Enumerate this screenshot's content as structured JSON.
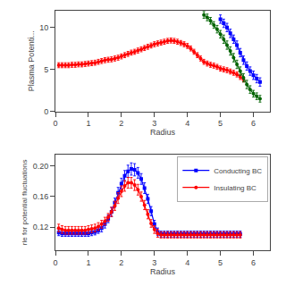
{
  "chart_data": [
    {
      "type": "line",
      "xlabel": "Radius",
      "ylabel": "Plasma Potenti...",
      "xlim": [
        0,
        6.5
      ],
      "ylim": [
        0,
        12
      ],
      "xticks": [
        0,
        1,
        2,
        3,
        4,
        5,
        6
      ],
      "yticks": [
        0,
        5,
        10
      ],
      "grid": false,
      "series": [
        {
          "color": "red",
          "marker": "circle",
          "line_style": "solid",
          "x": [
            0.1,
            0.2,
            0.3,
            0.4,
            0.5,
            0.6,
            0.7,
            0.8,
            0.9,
            1.0,
            1.1,
            1.2,
            1.3,
            1.4,
            1.5,
            1.6,
            1.7,
            1.8,
            1.9,
            2.0,
            2.1,
            2.2,
            2.3,
            2.4,
            2.5,
            2.6,
            2.7,
            2.8,
            2.9,
            3.0,
            3.1,
            3.2,
            3.3,
            3.4,
            3.5,
            3.6,
            3.7,
            3.8,
            3.9,
            4.0,
            4.1,
            4.2,
            4.3,
            4.4,
            4.5,
            4.6,
            4.7,
            4.8,
            4.9,
            5.0,
            5.1,
            5.2,
            5.3,
            5.4,
            5.5,
            5.6,
            5.7
          ],
          "values": [
            5.5,
            5.5,
            5.5,
            5.5,
            5.55,
            5.55,
            5.6,
            5.6,
            5.65,
            5.7,
            5.75,
            5.8,
            5.9,
            6.0,
            6.1,
            6.15,
            6.2,
            6.3,
            6.4,
            6.55,
            6.7,
            6.85,
            7.0,
            7.1,
            7.25,
            7.4,
            7.55,
            7.7,
            7.85,
            8.0,
            8.1,
            8.2,
            8.3,
            8.4,
            8.45,
            8.4,
            8.3,
            8.15,
            8.0,
            7.8,
            7.5,
            7.1,
            6.7,
            6.3,
            5.9,
            5.7,
            5.55,
            5.45,
            5.3,
            5.1,
            5.0,
            4.9,
            4.75,
            4.6,
            4.4,
            4.1,
            3.8
          ],
          "error": [
            0.3,
            0.3,
            0.3,
            0.3,
            0.3,
            0.3,
            0.3,
            0.3,
            0.3,
            0.3,
            0.3,
            0.3,
            0.3,
            0.3,
            0.3,
            0.3,
            0.3,
            0.3,
            0.3,
            0.3,
            0.3,
            0.3,
            0.3,
            0.3,
            0.3,
            0.3,
            0.3,
            0.3,
            0.3,
            0.3,
            0.3,
            0.3,
            0.3,
            0.3,
            0.3,
            0.3,
            0.3,
            0.3,
            0.3,
            0.3,
            0.3,
            0.3,
            0.3,
            0.3,
            0.3,
            0.3,
            0.3,
            0.3,
            0.3,
            0.3,
            0.3,
            0.3,
            0.3,
            0.3,
            0.3,
            0.3,
            0.3
          ]
        },
        {
          "color": "darkgreen",
          "marker": "circle",
          "line_style": "solid",
          "x": [
            4.5,
            4.6,
            4.7,
            4.8,
            4.9,
            5.0,
            5.1,
            5.2,
            5.3,
            5.4,
            5.5,
            5.6,
            5.7,
            5.8,
            5.9,
            6.0,
            6.1,
            6.2
          ],
          "values": [
            11.5,
            11.2,
            10.8,
            10.3,
            9.8,
            9.2,
            8.6,
            7.9,
            7.2,
            6.4,
            5.6,
            4.8,
            4.0,
            3.2,
            2.6,
            2.1,
            1.8,
            1.5
          ],
          "error": [
            0.4,
            0.4,
            0.4,
            0.4,
            0.45,
            0.45,
            0.5,
            0.5,
            0.5,
            0.5,
            0.5,
            0.5,
            0.5,
            0.5,
            0.45,
            0.4,
            0.4,
            0.4
          ]
        },
        {
          "color": "blue",
          "marker": "square",
          "line_style": "solid",
          "x": [
            5.0,
            5.1,
            5.2,
            5.3,
            5.4,
            5.5,
            5.6,
            5.7,
            5.8,
            5.9,
            6.0,
            6.1,
            6.2
          ],
          "values": [
            11.0,
            10.5,
            10.0,
            9.3,
            8.6,
            7.9,
            7.0,
            6.1,
            5.4,
            4.8,
            4.3,
            3.9,
            3.5
          ],
          "error": [
            0.5,
            0.5,
            0.5,
            0.5,
            0.5,
            0.5,
            0.5,
            0.5,
            0.5,
            0.5,
            0.5,
            0.5,
            0.5
          ]
        }
      ]
    },
    {
      "type": "line",
      "xlabel": "Radius",
      "ylabel": "rle for potential fluctuations",
      "xlim": [
        0,
        6.5
      ],
      "ylim": [
        0.09,
        0.215
      ],
      "xticks": [
        0,
        1,
        2,
        3,
        4,
        5,
        6
      ],
      "yticks": [
        0.12,
        0.16,
        {
          "value": 0.2,
          "label": "0.20"
        }
      ],
      "grid": false,
      "legend": "upper right",
      "series": [
        {
          "name": "Conducting BC",
          "color": "blue",
          "marker": "square",
          "line_style": "solid",
          "x": [
            0.1,
            0.2,
            0.3,
            0.4,
            0.5,
            0.6,
            0.7,
            0.8,
            0.9,
            1.0,
            1.1,
            1.2,
            1.3,
            1.4,
            1.5,
            1.6,
            1.7,
            1.8,
            1.9,
            2.0,
            2.1,
            2.2,
            2.3,
            2.4,
            2.5,
            2.6,
            2.7,
            2.8,
            2.9,
            3.0,
            3.1,
            3.2,
            3.3,
            3.4,
            3.5,
            3.6,
            3.7,
            3.8,
            3.9,
            4.0,
            4.1,
            4.2,
            4.3,
            4.4,
            4.5,
            4.6,
            4.7,
            4.8,
            4.9,
            5.0,
            5.1,
            5.2,
            5.3,
            5.4,
            5.5,
            5.6
          ],
          "values": [
            0.113,
            0.112,
            0.112,
            0.112,
            0.112,
            0.112,
            0.112,
            0.112,
            0.112,
            0.112,
            0.113,
            0.114,
            0.116,
            0.119,
            0.124,
            0.131,
            0.14,
            0.152,
            0.165,
            0.177,
            0.187,
            0.193,
            0.196,
            0.195,
            0.191,
            0.183,
            0.171,
            0.157,
            0.141,
            0.124,
            0.114,
            0.111,
            0.111,
            0.111,
            0.111,
            0.111,
            0.111,
            0.111,
            0.111,
            0.111,
            0.111,
            0.111,
            0.111,
            0.111,
            0.111,
            0.111,
            0.111,
            0.111,
            0.111,
            0.111,
            0.111,
            0.111,
            0.111,
            0.111,
            0.111,
            0.111
          ],
          "error": [
            0.004,
            0.004,
            0.004,
            0.004,
            0.004,
            0.004,
            0.004,
            0.004,
            0.004,
            0.004,
            0.004,
            0.004,
            0.004,
            0.005,
            0.005,
            0.005,
            0.006,
            0.006,
            0.007,
            0.007,
            0.007,
            0.008,
            0.008,
            0.008,
            0.007,
            0.007,
            0.007,
            0.006,
            0.006,
            0.005,
            0.005,
            0.004,
            0.004,
            0.004,
            0.004,
            0.004,
            0.004,
            0.004,
            0.004,
            0.004,
            0.004,
            0.004,
            0.004,
            0.004,
            0.004,
            0.004,
            0.004,
            0.004,
            0.004,
            0.004,
            0.004,
            0.004,
            0.004,
            0.004,
            0.004,
            0.004
          ]
        },
        {
          "name": "Insulating BC",
          "color": "red",
          "marker": "circle",
          "line_style": "solid",
          "x": [
            0.1,
            0.2,
            0.3,
            0.4,
            0.5,
            0.6,
            0.7,
            0.8,
            0.9,
            1.0,
            1.1,
            1.2,
            1.3,
            1.4,
            1.5,
            1.6,
            1.7,
            1.8,
            1.9,
            2.0,
            2.1,
            2.2,
            2.3,
            2.4,
            2.5,
            2.6,
            2.7,
            2.8,
            2.9,
            3.0,
            3.1,
            3.2,
            3.3,
            3.4,
            3.5,
            3.6,
            3.7,
            3.8,
            3.9,
            4.0,
            4.1,
            4.2,
            4.3,
            4.4,
            4.5,
            4.6,
            4.7,
            4.8,
            4.9,
            5.0,
            5.1,
            5.2,
            5.3,
            5.4,
            5.5,
            5.6
          ],
          "values": [
            0.119,
            0.117,
            0.116,
            0.116,
            0.116,
            0.116,
            0.116,
            0.116,
            0.116,
            0.117,
            0.118,
            0.119,
            0.121,
            0.124,
            0.128,
            0.133,
            0.14,
            0.148,
            0.158,
            0.167,
            0.174,
            0.178,
            0.178,
            0.175,
            0.169,
            0.16,
            0.149,
            0.137,
            0.125,
            0.117,
            0.112,
            0.11,
            0.11,
            0.11,
            0.11,
            0.11,
            0.11,
            0.11,
            0.11,
            0.11,
            0.11,
            0.11,
            0.11,
            0.11,
            0.11,
            0.11,
            0.11,
            0.11,
            0.11,
            0.11,
            0.11,
            0.11,
            0.11,
            0.11,
            0.11,
            0.11
          ],
          "error": [
            0.005,
            0.005,
            0.005,
            0.005,
            0.005,
            0.005,
            0.005,
            0.005,
            0.005,
            0.005,
            0.005,
            0.005,
            0.005,
            0.005,
            0.005,
            0.005,
            0.006,
            0.006,
            0.007,
            0.007,
            0.007,
            0.007,
            0.007,
            0.007,
            0.007,
            0.006,
            0.006,
            0.006,
            0.005,
            0.005,
            0.005,
            0.004,
            0.004,
            0.004,
            0.004,
            0.004,
            0.004,
            0.004,
            0.004,
            0.004,
            0.004,
            0.004,
            0.004,
            0.004,
            0.004,
            0.004,
            0.004,
            0.004,
            0.004,
            0.004,
            0.004,
            0.004,
            0.004,
            0.004,
            0.004,
            0.004
          ]
        }
      ]
    }
  ]
}
